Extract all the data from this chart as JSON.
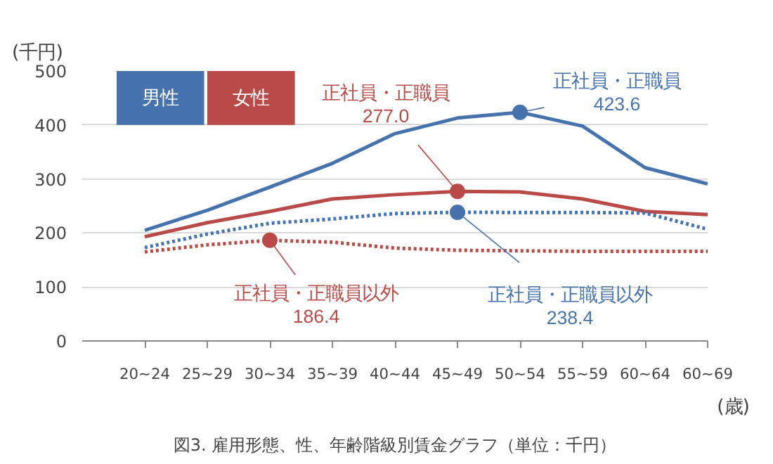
{
  "chart_data": {
    "type": "line",
    "title": "図3. 雇用形態、性、年齢階級別賃金グラフ（単位：千円）",
    "ylabel": "(千円)",
    "xlabel": "(歳)",
    "categories": [
      "20~24",
      "25~29",
      "30~34",
      "35~39",
      "40~44",
      "45~49",
      "50~54",
      "55~59",
      "60~64",
      "60~69"
    ],
    "series": [
      {
        "name": "男性",
        "color": "#4673ad",
        "line_style": "solid",
        "values": [
          205,
          242,
          285,
          329,
          384,
          413,
          423.6,
          398,
          321,
          291
        ]
      },
      {
        "name": "女性",
        "color": "#b94a48",
        "line_style": "solid",
        "values": [
          193,
          219,
          240,
          263,
          271,
          277.0,
          276,
          263,
          240,
          234
        ]
      },
      {
        "color": "#4673ad",
        "line_style": "dotted",
        "values": [
          173,
          198,
          218,
          226,
          236,
          238.4,
          238,
          238,
          237,
          207
        ]
      },
      {
        "color": "#b94a48",
        "line_style": "dotted",
        "values": [
          165,
          178,
          186.4,
          183,
          172,
          168,
          167,
          166,
          166,
          166
        ]
      }
    ],
    "annotations": [
      {
        "text": "正社員・正職員\n277.0",
        "x": "45~49",
        "y": 277.0
      },
      {
        "text": "正社員・正職員\n423.6",
        "x": "50~54",
        "y": 423.6
      },
      {
        "text": "正社員・正職員以外\n186.4",
        "x": "30~34",
        "y": 186.4
      },
      {
        "text": "正社員・正職員以外\n238.4",
        "x": "45~49",
        "y": 238.4
      }
    ],
    "ylim": [
      0,
      500
    ],
    "yticks": [
      0,
      100,
      200,
      300,
      400,
      500
    ],
    "grid": "y",
    "legend": "top left"
  }
}
